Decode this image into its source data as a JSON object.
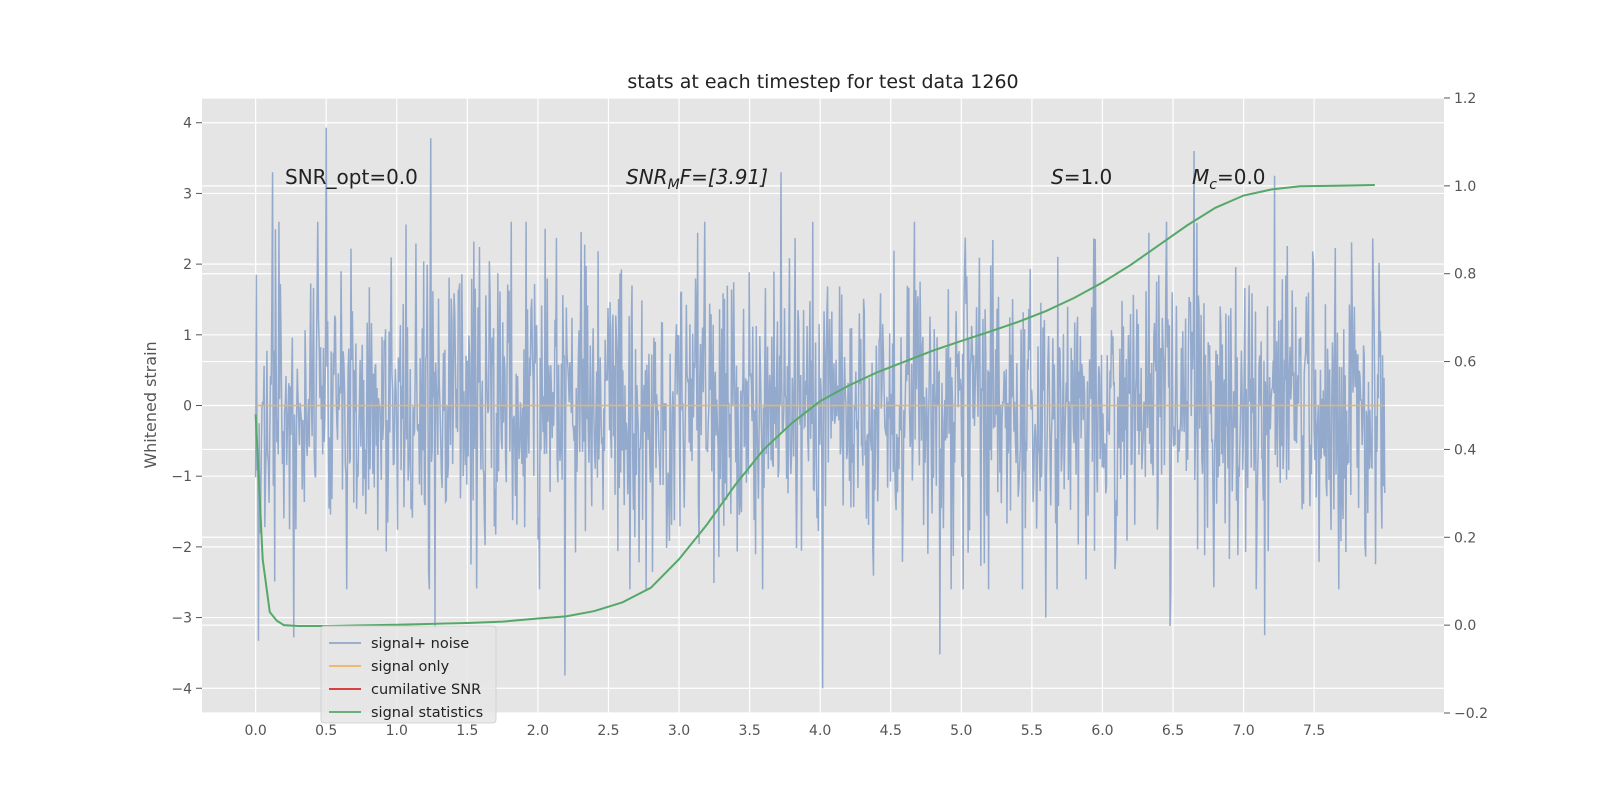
{
  "chart_data": {
    "type": "line",
    "title": "stats at each timestep for test data 1260",
    "ylabel": "Whitened strain",
    "xlim": [
      -0.38,
      8.42
    ],
    "ylim": [
      -4.35,
      4.35
    ],
    "y2lim": [
      -0.2,
      1.2
    ],
    "x_ticks": [
      0.0,
      0.5,
      1.0,
      1.5,
      2.0,
      2.5,
      3.0,
      3.5,
      4.0,
      4.5,
      5.0,
      5.5,
      6.0,
      6.5,
      7.0,
      7.5
    ],
    "x_tick_labels": [
      "0.0",
      "0.5",
      "1.0",
      "1.5",
      "2.0",
      "2.5",
      "3.0",
      "3.5",
      "4.0",
      "4.5",
      "5.0",
      "5.5",
      "6.0",
      "6.5",
      "7.0",
      "7.5"
    ],
    "y_ticks": [
      -4,
      -3,
      -2,
      -1,
      0,
      1,
      2,
      3,
      4
    ],
    "y_tick_labels": [
      "−4",
      "−3",
      "−2",
      "−1",
      "0",
      "1",
      "2",
      "3",
      "4"
    ],
    "y2_ticks": [
      -0.2,
      0.0,
      0.2,
      0.4,
      0.6,
      0.8,
      1.0,
      1.2
    ],
    "y2_tick_labels": [
      "−0.2",
      "0.0",
      "0.2",
      "0.4",
      "0.6",
      "0.8",
      "1.0",
      "1.2"
    ],
    "grid": true,
    "legend_position": "lower-left",
    "annotations": {
      "snr_opt": "SNR_opt=0.0",
      "snr_mf_main": "SNR",
      "snr_mf_sub": "M",
      "snr_mf_tail": "F=[3.91]",
      "s_main": "S",
      "s_tail": "=1.0",
      "mc_main": "M",
      "mc_sub": "c",
      "mc_tail": "=0.0"
    },
    "series": [
      {
        "name": "signal+ noise",
        "color": "#8fa6cb",
        "axis": "left",
        "x_range": [
          0.0,
          8.0
        ],
        "sample_count": 1600,
        "noise_sigma": 1.0,
        "spikes": [
          {
            "x": 0.5,
            "y": 3.93
          },
          {
            "x": 1.24,
            "y": 3.78
          },
          {
            "x": 0.12,
            "y": 3.3
          },
          {
            "x": 3.72,
            "y": 3.3
          },
          {
            "x": 6.65,
            "y": 3.6
          },
          {
            "x": 7.22,
            "y": 3.25
          },
          {
            "x": 4.02,
            "y": -4.0
          },
          {
            "x": 2.19,
            "y": -3.82
          },
          {
            "x": 4.85,
            "y": -3.52
          },
          {
            "x": 0.02,
            "y": -3.33
          },
          {
            "x": 0.27,
            "y": -3.28
          },
          {
            "x": 1.27,
            "y": -3.15
          },
          {
            "x": 5.6,
            "y": -3.0
          },
          {
            "x": 7.15,
            "y": -3.25
          },
          {
            "x": 6.48,
            "y": -3.12
          }
        ]
      },
      {
        "name": "signal only",
        "color": "#eeb45e",
        "axis": "left",
        "x": [
          0.0,
          8.0
        ],
        "y": [
          0.0,
          0.0
        ]
      },
      {
        "name": "cumilative SNR",
        "color": "#d62728",
        "axis": "right",
        "x": [],
        "y": []
      },
      {
        "name": "signal statistics",
        "color": "#55a868",
        "axis": "right",
        "x": [
          0.0,
          0.05,
          0.1,
          0.15,
          0.2,
          0.3,
          0.5,
          1.0,
          1.5,
          1.75,
          2.0,
          2.2,
          2.4,
          2.6,
          2.8,
          3.0,
          3.2,
          3.4,
          3.6,
          3.8,
          4.0,
          4.2,
          4.4,
          4.6,
          4.8,
          5.0,
          5.2,
          5.4,
          5.6,
          5.8,
          6.0,
          6.2,
          6.4,
          6.6,
          6.8,
          7.0,
          7.2,
          7.4,
          7.6,
          7.93
        ],
        "y": [
          0.48,
          0.15,
          0.03,
          0.01,
          0.0,
          -0.002,
          -0.002,
          0.001,
          0.005,
          0.008,
          0.015,
          0.02,
          0.032,
          0.052,
          0.085,
          0.15,
          0.23,
          0.32,
          0.4,
          0.46,
          0.51,
          0.545,
          0.575,
          0.6,
          0.625,
          0.647,
          0.668,
          0.69,
          0.715,
          0.745,
          0.78,
          0.82,
          0.865,
          0.91,
          0.95,
          0.978,
          0.992,
          0.999,
          1.0,
          1.002
        ]
      }
    ]
  }
}
